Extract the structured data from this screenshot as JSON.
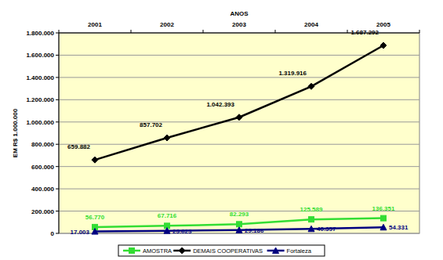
{
  "chart_data": {
    "type": "line",
    "x_label": "ANOS",
    "y_label": "EM R$ 1.000.000",
    "categories": [
      "2001",
      "2002",
      "2003",
      "2004",
      "2005"
    ],
    "series": [
      {
        "name": "AMOSTRA",
        "color": "#33dd33",
        "marker": "square",
        "values": [
          56770,
          67716,
          82293,
          125589,
          136351
        ],
        "value_labels": [
          "56.770",
          "67.716",
          "82.293",
          "125.589",
          "136.351"
        ]
      },
      {
        "name": "DEMAIS COOPERATIVAS",
        "color": "#000000",
        "marker": "diamond",
        "values": [
          659882,
          857702,
          1042393,
          1319916,
          1687292
        ],
        "value_labels": [
          "659.882",
          "857.702",
          "1.042.393",
          "1.319.916",
          "1.687.292"
        ]
      },
      {
        "name": "Fortaleza",
        "color": "#000080",
        "marker": "triangle",
        "values": [
          17003,
          23623,
          29186,
          40357,
          54331
        ],
        "value_labels": [
          "17.003",
          "23.623",
          "29.186",
          "40.357",
          "54.331"
        ]
      }
    ],
    "ylim": [
      0,
      1800000
    ],
    "yticks": [
      0,
      {
        "value": 200000,
        "label": "200.000"
      },
      {
        "value": 400000,
        "label": "400.000"
      },
      {
        "value": 600000,
        "label": "600.000"
      },
      {
        "value": 800000,
        "label": "800.000"
      },
      {
        "value": 1000000,
        "label": "1.000.000"
      },
      {
        "value": 1200000,
        "label": "1.200.000"
      },
      {
        "value": 1400000,
        "label": "1.400.000"
      },
      {
        "value": 1600000,
        "label": "1.600.000"
      },
      {
        "value": 1800000,
        "label": "1.800.000"
      }
    ],
    "grid": true,
    "data_labels": true,
    "legend": "bottom"
  }
}
